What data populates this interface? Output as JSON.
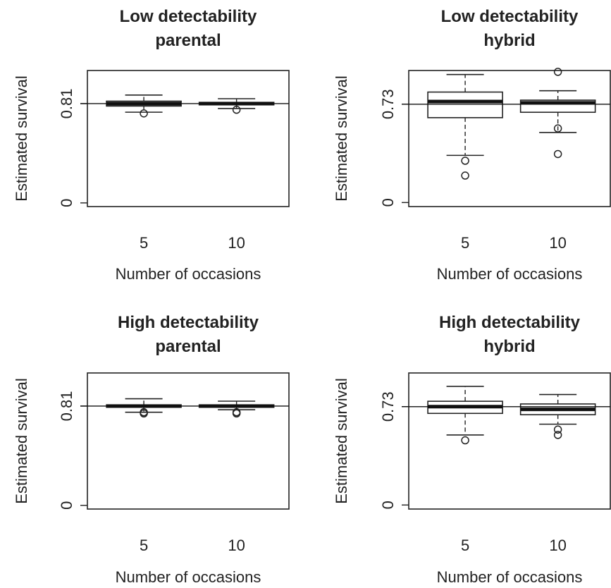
{
  "chart_data": [
    {
      "type": "boxplot",
      "title": [
        "Low detectability",
        "parental"
      ],
      "xlabel": "Number of occasions",
      "ylabel": "Estimated survival",
      "categories": [
        "5",
        "10"
      ],
      "yticks": [
        {
          "value": 0,
          "label": "0"
        },
        {
          "value": 0.81,
          "label": "0.81"
        }
      ],
      "reference_line": 0.81,
      "ylim": [
        -0.03,
        1.08
      ],
      "boxes": [
        {
          "category": "5",
          "whisker_low": 0.74,
          "q1": 0.79,
          "median": 0.81,
          "q3": 0.83,
          "whisker_high": 0.88,
          "outliers": [
            0.73
          ]
        },
        {
          "category": "10",
          "whisker_low": 0.77,
          "q1": 0.8,
          "median": 0.81,
          "q3": 0.82,
          "whisker_high": 0.85,
          "outliers": [
            0.76
          ]
        }
      ]
    },
    {
      "type": "boxplot",
      "title": [
        "Low detectability",
        "hybrid"
      ],
      "xlabel": "Number of occasions",
      "ylabel": "Estimated survival",
      "categories": [
        "5",
        "10"
      ],
      "yticks": [
        {
          "value": 0,
          "label": "0"
        },
        {
          "value": 0.73,
          "label": "0.73"
        }
      ],
      "reference_line": 0.73,
      "ylim": [
        -0.03,
        0.98
      ],
      "boxes": [
        {
          "category": "5",
          "whisker_low": 0.35,
          "q1": 0.63,
          "median": 0.75,
          "q3": 0.82,
          "whisker_high": 0.95,
          "outliers": [
            0.31,
            0.2
          ]
        },
        {
          "category": "10",
          "whisker_low": 0.52,
          "q1": 0.67,
          "median": 0.74,
          "q3": 0.76,
          "whisker_high": 0.83,
          "outliers": [
            0.97,
            0.55,
            0.36
          ]
        }
      ]
    },
    {
      "type": "boxplot",
      "title": [
        "High detectability",
        "parental"
      ],
      "xlabel": "Number of occasions",
      "ylabel": "Estimated survival",
      "categories": [
        "5",
        "10"
      ],
      "yticks": [
        {
          "value": 0,
          "label": "0"
        },
        {
          "value": 0.81,
          "label": "0.81"
        }
      ],
      "reference_line": 0.81,
      "ylim": [
        -0.03,
        1.08
      ],
      "boxes": [
        {
          "category": "5",
          "whisker_low": 0.76,
          "q1": 0.8,
          "median": 0.81,
          "q3": 0.82,
          "whisker_high": 0.87,
          "outliers": [
            0.75,
            0.76
          ]
        },
        {
          "category": "10",
          "whisker_low": 0.78,
          "q1": 0.8,
          "median": 0.81,
          "q3": 0.82,
          "whisker_high": 0.85,
          "outliers": [
            0.75,
            0.76
          ]
        }
      ]
    },
    {
      "type": "boxplot",
      "title": [
        "High detectability",
        "hybrid"
      ],
      "xlabel": "Number of occasions",
      "ylabel": "Estimated survival",
      "categories": [
        "5",
        "10"
      ],
      "yticks": [
        {
          "value": 0,
          "label": "0"
        },
        {
          "value": 0.73,
          "label": "0.73"
        }
      ],
      "reference_line": 0.73,
      "ylim": [
        -0.03,
        0.98
      ],
      "boxes": [
        {
          "category": "5",
          "whisker_low": 0.52,
          "q1": 0.68,
          "median": 0.73,
          "q3": 0.77,
          "whisker_high": 0.88,
          "outliers": [
            0.48
          ]
        },
        {
          "category": "10",
          "whisker_low": 0.6,
          "q1": 0.67,
          "median": 0.71,
          "q3": 0.75,
          "whisker_high": 0.82,
          "outliers": [
            0.56,
            0.52
          ]
        }
      ]
    }
  ]
}
